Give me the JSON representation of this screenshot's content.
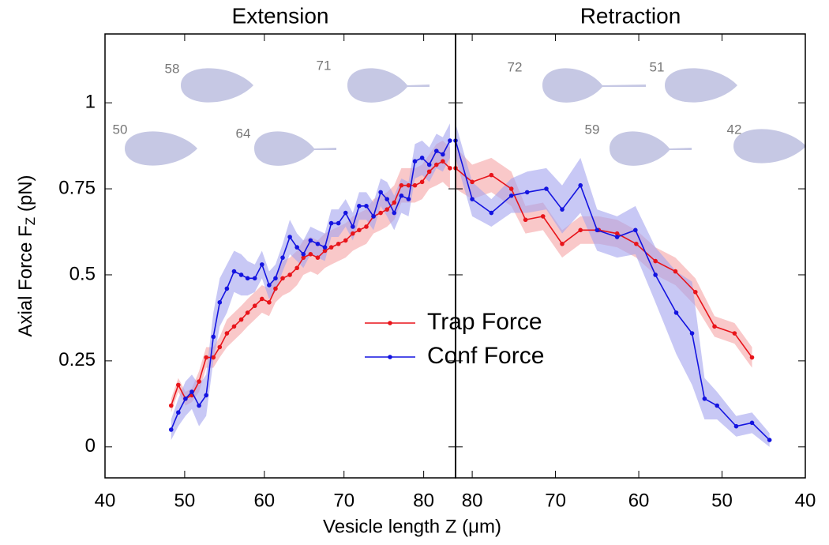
{
  "chart_data": {
    "type": "line",
    "ylabel": {
      "text": "Axial  Force  F",
      "sub": "Z",
      "unit": " (pN)"
    },
    "xlabel": "Vesicle length Z (μm)",
    "ylim": [
      -0.09,
      1.2
    ],
    "yticks": [
      0,
      0.25,
      0.5,
      0.75,
      1
    ],
    "series": [
      {
        "name": "Trap Force",
        "color": "#e8141a",
        "band_color": "#f5a3a5"
      },
      {
        "name": "Conf Force",
        "color": "#1414e0",
        "band_color": "#a3a3ee"
      }
    ],
    "annotations": [
      58,
      71,
      50,
      64,
      72,
      51,
      59,
      42
    ],
    "panels": [
      {
        "title": "Extension",
        "xlim": [
          40,
          84
        ],
        "xticks": [
          40,
          50,
          60,
          70,
          80
        ],
        "data": [
          {
            "x": [
              48.3,
              49.2,
              50.1,
              50.9,
              51.8,
              52.7,
              53.6,
              54.4,
              55.3,
              56.2,
              57.1,
              57.9,
              58.8,
              59.7,
              60.6,
              61.4,
              62.3,
              63.2,
              64.1,
              64.9,
              65.8,
              66.7,
              67.6,
              68.4,
              69.3,
              70.2,
              71.1,
              71.9,
              72.8,
              73.7,
              74.6,
              75.4,
              76.3,
              77.2,
              78.1,
              78.9,
              79.8,
              80.7,
              81.6,
              82.4,
              83.3
            ],
            "values": [
              0.12,
              0.18,
              0.14,
              0.15,
              0.19,
              0.26,
              0.26,
              0.29,
              0.33,
              0.35,
              0.37,
              0.39,
              0.41,
              0.43,
              0.42,
              0.46,
              0.49,
              0.5,
              0.52,
              0.55,
              0.56,
              0.55,
              0.57,
              0.58,
              0.59,
              0.6,
              0.62,
              0.63,
              0.64,
              0.67,
              0.68,
              0.69,
              0.71,
              0.76,
              0.76,
              0.76,
              0.77,
              0.8,
              0.82,
              0.83,
              0.81
            ],
            "errors": [
              0.02,
              0.02,
              0.02,
              0.02,
              0.03,
              0.03,
              0.03,
              0.03,
              0.04,
              0.04,
              0.04,
              0.04,
              0.04,
              0.04,
              0.04,
              0.04,
              0.05,
              0.05,
              0.05,
              0.05,
              0.05,
              0.05,
              0.05,
              0.05,
              0.05,
              0.05,
              0.05,
              0.05,
              0.05,
              0.05,
              0.05,
              0.05,
              0.05,
              0.05,
              0.05,
              0.05,
              0.05,
              0.05,
              0.06,
              0.06,
              0.06
            ]
          },
          {
            "x": [
              48.3,
              49.2,
              50.1,
              50.9,
              51.8,
              52.7,
              53.6,
              54.4,
              55.3,
              56.2,
              57.1,
              57.9,
              58.8,
              59.7,
              60.6,
              61.4,
              62.3,
              63.2,
              64.1,
              64.9,
              65.8,
              66.7,
              67.6,
              68.4,
              69.3,
              70.2,
              71.1,
              71.9,
              72.8,
              73.7,
              74.6,
              75.4,
              76.3,
              77.2,
              78.1,
              78.9,
              79.8,
              80.7,
              81.6,
              82.4,
              83.3
            ],
            "values": [
              0.05,
              0.1,
              0.14,
              0.16,
              0.12,
              0.15,
              0.32,
              0.42,
              0.46,
              0.51,
              0.5,
              0.49,
              0.49,
              0.53,
              0.47,
              0.49,
              0.55,
              0.61,
              0.58,
              0.56,
              0.6,
              0.59,
              0.58,
              0.65,
              0.65,
              0.68,
              0.64,
              0.7,
              0.7,
              0.67,
              0.74,
              0.72,
              0.68,
              0.73,
              0.72,
              0.83,
              0.84,
              0.82,
              0.86,
              0.85,
              0.89
            ],
            "errors": [
              0.03,
              0.04,
              0.05,
              0.05,
              0.06,
              0.06,
              0.07,
              0.07,
              0.07,
              0.06,
              0.06,
              0.05,
              0.04,
              0.04,
              0.04,
              0.04,
              0.04,
              0.05,
              0.04,
              0.04,
              0.04,
              0.04,
              0.04,
              0.04,
              0.04,
              0.04,
              0.04,
              0.04,
              0.04,
              0.04,
              0.04,
              0.05,
              0.05,
              0.05,
              0.05,
              0.05,
              0.05,
              0.05,
              0.05,
              0.05,
              0.05
            ]
          }
        ]
      },
      {
        "title": "Retraction",
        "xlim": [
          82,
          40
        ],
        "xticks": [
          80,
          70,
          60,
          50,
          40
        ],
        "data": [
          {
            "x": [
              82,
              80,
              77.7,
              75.3,
              73.6,
              71.5,
              69.2,
              67,
              64.8,
              62.6,
              60.3,
              58,
              55.6,
              53.2,
              50.9,
              48.5,
              46.4
            ],
            "values": [
              0.81,
              0.77,
              0.79,
              0.75,
              0.66,
              0.67,
              0.59,
              0.63,
              0.63,
              0.62,
              0.59,
              0.54,
              0.51,
              0.45,
              0.35,
              0.33,
              0.26
            ],
            "errors": [
              0.06,
              0.05,
              0.05,
              0.05,
              0.04,
              0.04,
              0.04,
              0.04,
              0.04,
              0.04,
              0.04,
              0.04,
              0.04,
              0.04,
              0.03,
              0.03,
              0.03
            ]
          },
          {
            "x": [
              82,
              80,
              77.7,
              75.3,
              73.4,
              71.1,
              69.2,
              67,
              65,
              62.6,
              60.4,
              58,
              55.5,
              53.6,
              52.1,
              50.6,
              48.3,
              46.4,
              44.3
            ],
            "values": [
              0.89,
              0.72,
              0.68,
              0.73,
              0.74,
              0.75,
              0.69,
              0.76,
              0.63,
              0.61,
              0.63,
              0.5,
              0.39,
              0.33,
              0.14,
              0.12,
              0.06,
              0.07,
              0.02
            ],
            "errors": [
              0.05,
              0.05,
              0.04,
              0.05,
              0.06,
              0.06,
              0.07,
              0.08,
              0.06,
              0.06,
              0.07,
              0.08,
              0.12,
              0.15,
              0.06,
              0.04,
              0.03,
              0.03,
              0.02
            ]
          }
        ]
      }
    ]
  }
}
